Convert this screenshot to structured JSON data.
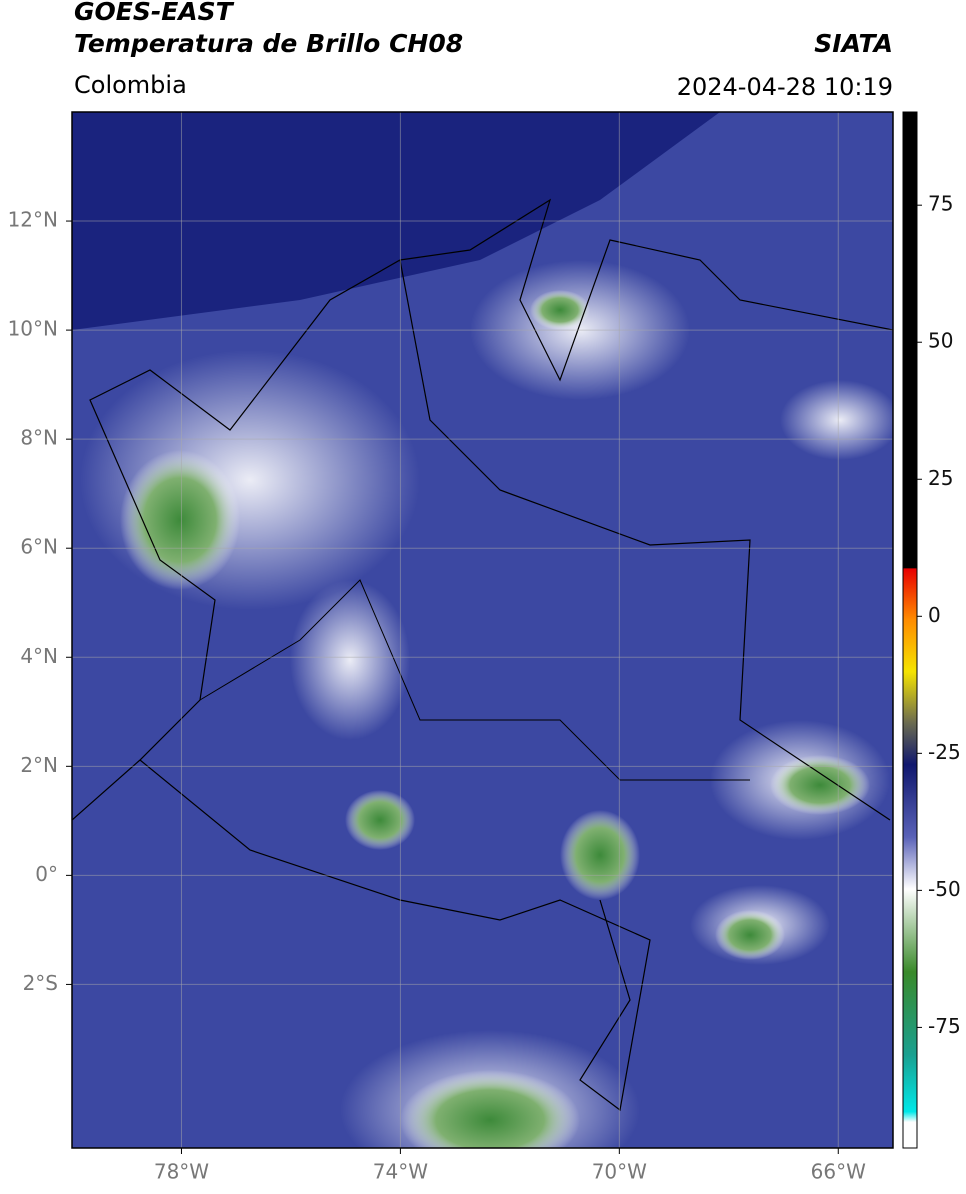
{
  "header": {
    "title": "GOES-EAST",
    "subtitle": "Temperatura de Brillo CH08",
    "source": "SIATA",
    "region": "Colombia",
    "datetime": "2024-04-28 10:19"
  },
  "map": {
    "xlim": [
      -80,
      -65
    ],
    "ylim": [
      -5,
      14
    ],
    "xticks": [
      {
        "value": -78,
        "label": "78°W"
      },
      {
        "value": -74,
        "label": "74°W"
      },
      {
        "value": -70,
        "label": "70°W"
      },
      {
        "value": -66,
        "label": "66°W"
      }
    ],
    "yticks": [
      {
        "value": 12,
        "label": "12°N"
      },
      {
        "value": 10,
        "label": "10°N"
      },
      {
        "value": 8,
        "label": "8°N"
      },
      {
        "value": 6,
        "label": "6°N"
      },
      {
        "value": 4,
        "label": "4°N"
      },
      {
        "value": 2,
        "label": "2°N"
      },
      {
        "value": 0,
        "label": "0°"
      },
      {
        "value": -2,
        "label": "2°S"
      }
    ]
  },
  "colorbar": {
    "lim": [
      -97,
      92
    ],
    "ticks": [
      75,
      50,
      25,
      0,
      -25,
      -50,
      -75
    ]
  }
}
